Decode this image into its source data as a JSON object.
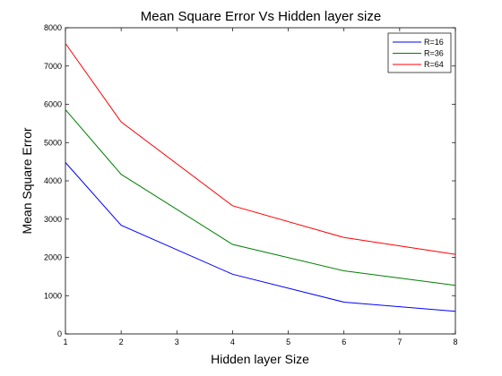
{
  "chart_data": {
    "type": "line",
    "title": "Mean Square Error Vs Hidden layer size",
    "xlabel": "Hidden layer Size",
    "ylabel": "Mean Square Error",
    "xlim": [
      1,
      8
    ],
    "ylim": [
      0,
      8000
    ],
    "xticks": [
      1,
      2,
      3,
      4,
      5,
      6,
      7,
      8
    ],
    "yticks": [
      0,
      1000,
      2000,
      3000,
      4000,
      5000,
      6000,
      7000,
      8000
    ],
    "x": [
      1,
      2,
      4,
      6,
      8
    ],
    "series": [
      {
        "name": "R=16",
        "color": "#0000ff",
        "values": [
          4480,
          2840,
          1560,
          830,
          590
        ]
      },
      {
        "name": "R=36",
        "color": "#008000",
        "values": [
          5860,
          4170,
          2340,
          1650,
          1270
        ]
      },
      {
        "name": "R=64",
        "color": "#ff0000",
        "values": [
          7590,
          5540,
          3350,
          2520,
          2080
        ]
      }
    ],
    "legend": "top-right",
    "grid": false
  }
}
